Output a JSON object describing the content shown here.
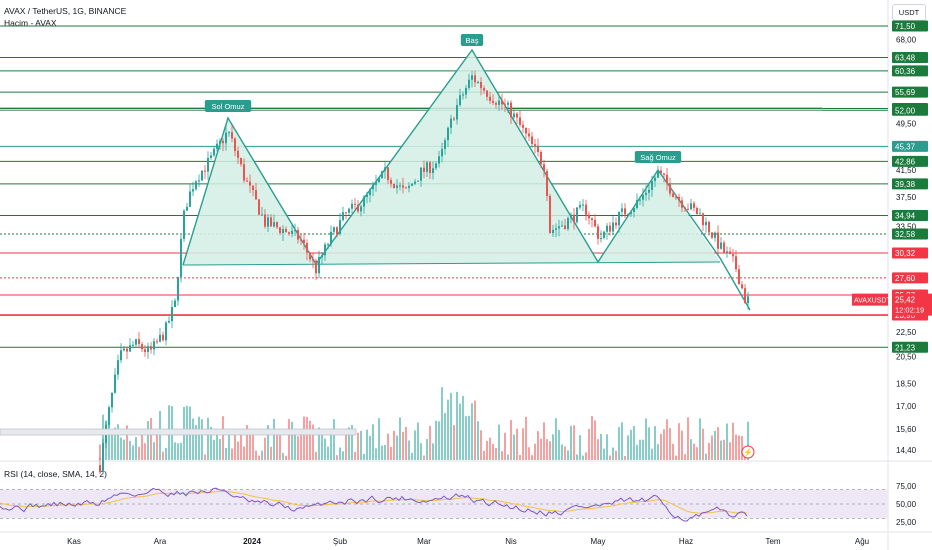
{
  "header": {
    "title": "AVAX / TetherUS, 1G, BINANCE",
    "volume_label": "Hacim - AVAX",
    "currency_button": "USDT",
    "rsi_label": "RSI (14, close, SMA, 14, 2)"
  },
  "colors": {
    "up": "#26a69a",
    "down": "#ef5350",
    "green_line": "#1b7a3c",
    "red_line": "#f23645",
    "pattern_line": "#2a9d8f",
    "pattern_fill": "#d4efe6",
    "rsi_line": "#7e57c2",
    "rsi_ma": "#f5c242",
    "rsi_band": "#ede7f6"
  },
  "chart_data": [
    {
      "type": "candlestick",
      "symbol": "AVAXUSDT",
      "price_axis": {
        "labels": [
          "71,50",
          "68,00",
          "63,48",
          "60,36",
          "55,69",
          "52,35",
          "52,00",
          "49,50",
          "45,37",
          "42,86",
          "41,50",
          "39,38",
          "37,50",
          "34,94",
          "33,50",
          "32,58",
          "30,32",
          "27,60",
          "25,87",
          "25,42",
          "23,98",
          "22,50",
          "21,23",
          "20,50",
          "18,50",
          "17,00",
          "15,60",
          "14,40"
        ],
        "scale": "log"
      },
      "current_price": "25,42",
      "countdown": "12:02:19",
      "price_tag": "AVAXUSDT",
      "horizontal_levels": [
        {
          "value": "71,50",
          "color": "green"
        },
        {
          "value": "63,48",
          "color": "green"
        },
        {
          "value": "60,36",
          "color": "green"
        },
        {
          "value": "55,69",
          "color": "green"
        },
        {
          "value": "52,35",
          "color": "green"
        },
        {
          "value": "52,00",
          "color": "green"
        },
        {
          "value": "45,37",
          "color": "teal"
        },
        {
          "value": "42,86",
          "color": "green"
        },
        {
          "value": "39,38",
          "color": "green"
        },
        {
          "value": "34,94",
          "color": "green"
        },
        {
          "value": "32,58",
          "color": "green",
          "style": "dotted"
        },
        {
          "value": "30,32",
          "color": "red"
        },
        {
          "value": "27,60",
          "color": "red",
          "style": "dotted"
        },
        {
          "value": "25,87",
          "color": "red"
        },
        {
          "value": "23,98",
          "color": "red"
        },
        {
          "value": "21,23",
          "color": "green"
        }
      ],
      "pattern": {
        "name": "head and shoulders",
        "labels": [
          "Sol Omuz",
          "Baş",
          "Sağ Omuz"
        ]
      },
      "time_axis": [
        "Kas",
        "Ara",
        "2024",
        "Şub",
        "Mar",
        "Nis",
        "May",
        "Haz",
        "Tem",
        "Ağu"
      ]
    },
    {
      "type": "line",
      "indicator": "RSI",
      "axis_labels": [
        "75,00",
        "50,00",
        "25,00"
      ]
    }
  ]
}
